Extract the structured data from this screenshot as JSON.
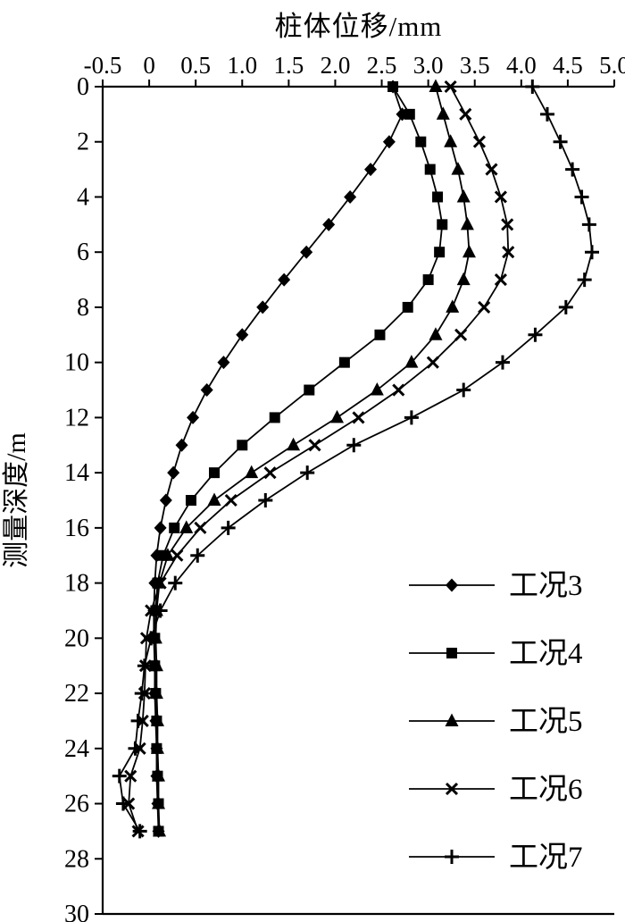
{
  "page": {
    "background": "#ffffff",
    "ink_color": "#000000"
  },
  "chart_data": {
    "type": "line",
    "title": "桩体位移/mm",
    "xlabel": "桩体位移/mm",
    "ylabel": "测量深度/m",
    "x_axis_position": "top",
    "y_axis_direction": "depth-downward",
    "grid": false,
    "legend_position": "inside-lower-right",
    "line_color": "#000000",
    "xlim": [
      -0.5,
      5.0
    ],
    "ylim": [
      0,
      30
    ],
    "xticks": [
      -0.5,
      0,
      0.5,
      1.0,
      1.5,
      2.0,
      2.5,
      3.0,
      3.5,
      4.0,
      4.5,
      5.0
    ],
    "xtick_labels": [
      "-0.5",
      "0",
      "0.5",
      "1.0",
      "1.5",
      "2.0",
      "2.5",
      "3.0",
      "3.5",
      "4.0",
      "4.5",
      "5.0"
    ],
    "yticks": [
      0,
      2,
      4,
      6,
      8,
      10,
      12,
      14,
      16,
      18,
      20,
      22,
      24,
      26,
      28,
      30
    ],
    "ytick_labels": [
      "0",
      "2",
      "4",
      "6",
      "8",
      "10",
      "12",
      "14",
      "16",
      "18",
      "20",
      "22",
      "24",
      "26",
      "28",
      "30"
    ],
    "depths_m": [
      0,
      1,
      2,
      3,
      4,
      5,
      6,
      7,
      8,
      9,
      10,
      11,
      12,
      13,
      14,
      15,
      16,
      17,
      18,
      19,
      20,
      21,
      22,
      23,
      24,
      25,
      26,
      27
    ],
    "series": [
      {
        "name": "工况3",
        "marker": "diamond",
        "color": "#000000",
        "values": [
          2.62,
          2.72,
          2.58,
          2.38,
          2.16,
          1.93,
          1.69,
          1.45,
          1.22,
          1.0,
          0.8,
          0.62,
          0.47,
          0.35,
          0.26,
          0.18,
          0.12,
          0.08,
          0.06,
          0.05,
          0.05,
          0.06,
          0.06,
          0.07,
          0.08,
          0.08,
          0.09,
          0.1
        ]
      },
      {
        "name": "工况4",
        "marker": "square",
        "color": "#000000",
        "values": [
          2.62,
          2.8,
          2.92,
          3.02,
          3.1,
          3.15,
          3.12,
          3.0,
          2.78,
          2.48,
          2.1,
          1.72,
          1.35,
          1.0,
          0.7,
          0.45,
          0.27,
          0.15,
          0.09,
          0.07,
          0.06,
          0.06,
          0.07,
          0.08,
          0.08,
          0.09,
          0.1,
          0.1
        ]
      },
      {
        "name": "工况5",
        "marker": "triangle",
        "color": "#000000",
        "values": [
          3.08,
          3.16,
          3.24,
          3.32,
          3.38,
          3.42,
          3.44,
          3.38,
          3.26,
          3.08,
          2.82,
          2.45,
          2.02,
          1.55,
          1.1,
          0.7,
          0.4,
          0.2,
          0.11,
          0.08,
          0.07,
          0.08,
          0.08,
          0.09,
          0.09,
          0.1,
          0.1,
          0.11
        ]
      },
      {
        "name": "工况6",
        "marker": "x",
        "color": "#000000",
        "values": [
          3.24,
          3.4,
          3.55,
          3.68,
          3.78,
          3.85,
          3.86,
          3.78,
          3.6,
          3.35,
          3.05,
          2.68,
          2.25,
          1.78,
          1.3,
          0.88,
          0.55,
          0.3,
          0.12,
          0.02,
          -0.03,
          -0.04,
          -0.05,
          -0.07,
          -0.1,
          -0.2,
          -0.22,
          -0.12
        ]
      },
      {
        "name": "工况7",
        "marker": "plus",
        "color": "#000000",
        "values": [
          4.12,
          4.28,
          4.42,
          4.55,
          4.65,
          4.73,
          4.76,
          4.68,
          4.48,
          4.15,
          3.8,
          3.38,
          2.82,
          2.2,
          1.7,
          1.25,
          0.85,
          0.52,
          0.28,
          0.12,
          0.02,
          -0.05,
          -0.08,
          -0.12,
          -0.15,
          -0.32,
          -0.28,
          -0.1
        ]
      }
    ]
  }
}
